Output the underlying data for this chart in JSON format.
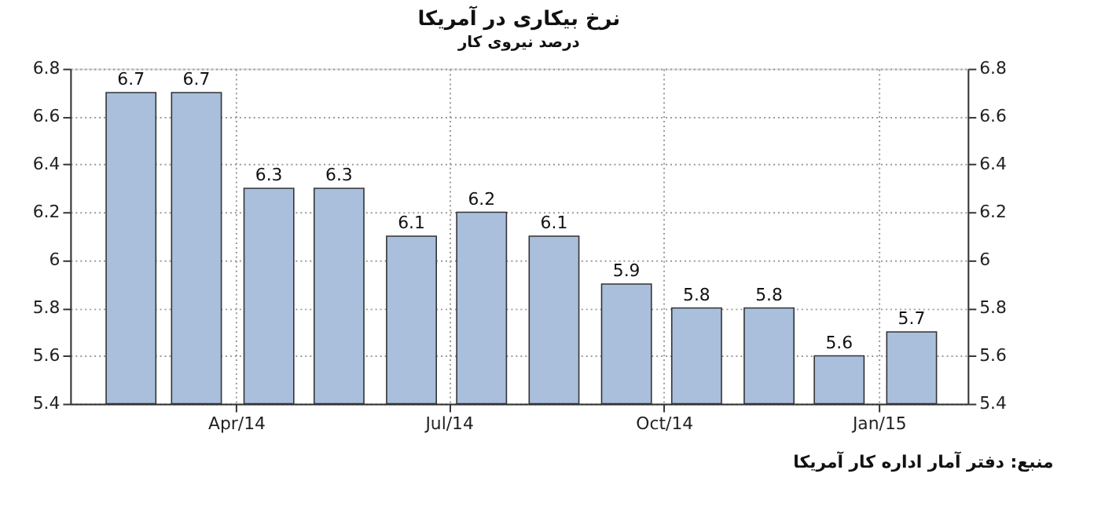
{
  "chart_data": {
    "type": "bar",
    "title": "نرخ بیکاری در آمریکا",
    "subtitle": "درصد نیروی کار",
    "x": [
      "2014-02-15",
      "2014-03-15",
      "2014-04-15",
      "2014-05-15",
      "2014-06-15",
      "2014-07-15",
      "2014-08-15",
      "2014-09-15",
      "2014-10-15",
      "2014-11-15",
      "2014-12-15",
      "2015-01-15"
    ],
    "values": [
      6.7,
      6.7,
      6.3,
      6.3,
      6.1,
      6.2,
      6.1,
      5.9,
      5.8,
      5.8,
      5.6,
      5.7
    ],
    "color": "#a9bfdc",
    "data_labels": true,
    "xlim": [
      "2014-01-20",
      "2015-02-08"
    ],
    "xticks": [
      {
        "value": "2014-04",
        "label": "Apr/14"
      },
      {
        "value": "2014-07",
        "label": "Jul/14"
      },
      {
        "value": "2014-10",
        "label": "Oct/14"
      },
      {
        "value": "2015-01",
        "label": "Jan/15"
      }
    ],
    "ylim": [
      5.4,
      6.8
    ],
    "yticks": [
      5.4,
      5.6,
      5.8,
      6,
      6.2,
      6.4,
      6.6,
      6.8
    ],
    "y2lim": [
      5.4,
      6.8
    ],
    "y2ticks": [
      5.4,
      5.6,
      5.8,
      6,
      6.2,
      6.4,
      6.6,
      6.8
    ],
    "grid": true,
    "annotations": [
      "منبع: دفتر آمار اداره کار آمریکا"
    ]
  }
}
